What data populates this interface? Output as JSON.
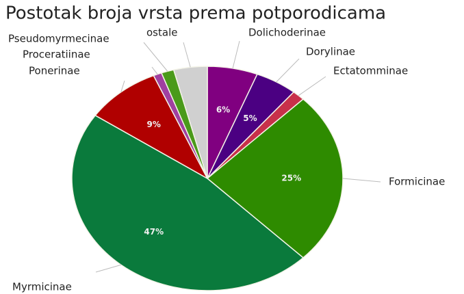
{
  "chart_data": {
    "type": "pie",
    "title": "Postotak broja vrsta prema potporodicama",
    "categories": [
      "Dolichoderinae",
      "Dorylinae",
      "Ectatomminae",
      "Formicinae",
      "Myrmicinae",
      "Ponerinae",
      "Proceratiinae",
      "Pseudomyrmecinae",
      "ostale"
    ],
    "values": [
      6,
      5,
      1.5,
      25,
      47,
      9,
      1,
      1.5,
      4
    ],
    "value_labels": [
      "6%",
      "5%",
      null,
      "25%",
      "47%",
      "9%",
      null,
      null,
      null
    ],
    "colors": [
      "#800080",
      "#4b0082",
      "#c8304a",
      "#2e8b00",
      "#0a7a3c",
      "#b00000",
      "#a040a0",
      "#4a9a1a",
      "#d0d0d0"
    ]
  }
}
